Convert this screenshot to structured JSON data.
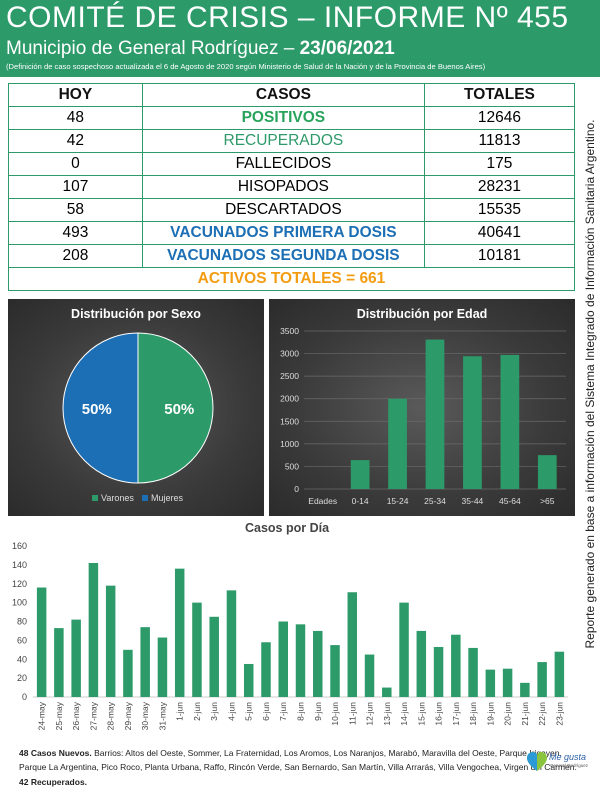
{
  "header": {
    "title": "COMITÉ DE CRISIS – INFORME Nº 455",
    "subtitle_prefix": "Municipio de General Rodríguez – ",
    "subtitle_date": "23/06/2021",
    "note": "(Definición de caso sospechoso actualizada el 6 de Agosto de 2020 según Ministerio de Salud de la Nación y de la Provincia de Buenos Aires)"
  },
  "table": {
    "headers": [
      "HOY",
      "CASOS",
      "TOTALES"
    ],
    "rows": [
      {
        "hoy": "48",
        "label": "POSITIVOS",
        "total": "12646"
      },
      {
        "hoy": "42",
        "label": "RECUPERADOS",
        "total": "11813"
      },
      {
        "hoy": "0",
        "label": "FALLECIDOS",
        "total": "175"
      },
      {
        "hoy": "107",
        "label": "HISOPADOS",
        "total": "28231"
      },
      {
        "hoy": "58",
        "label": "DESCARTADOS",
        "total": "15535"
      },
      {
        "hoy": "493",
        "label": "VACUNADOS PRIMERA DOSIS",
        "total": "40641"
      },
      {
        "hoy": "208",
        "label": "VACUNADOS SEGUNDA DOSIS",
        "total": "10181"
      }
    ],
    "activos": "ACTIVOS TOTALES = 661"
  },
  "side_text": "Reporte generado en base a información del Sistema Integrado de Información Sanitaria Argentino.",
  "chart_data": [
    {
      "type": "pie",
      "title": "Distribución por Sexo",
      "categories": [
        "Varones",
        "Mujeres"
      ],
      "values": [
        50,
        50
      ],
      "labels": [
        "50%",
        "50%"
      ],
      "colors": [
        "#2d9a6a",
        "#1c6fb5"
      ],
      "legend": "bottom"
    },
    {
      "type": "bar",
      "title": "Distribución por Edad",
      "xlabel": "Edades",
      "categories": [
        "0-14",
        "15-24",
        "25-34",
        "35-44",
        "45-64",
        ">65"
      ],
      "values": [
        640,
        2000,
        3310,
        2940,
        2970,
        750
      ],
      "ylim": [
        0,
        3500
      ],
      "yticks": [
        0,
        500,
        1000,
        1500,
        2000,
        2500,
        3000,
        3500
      ],
      "color": "#2d9a6a",
      "grid": true
    },
    {
      "type": "bar",
      "title": "Casos por Día",
      "categories": [
        "24-may",
        "25-may",
        "26-may",
        "27-may",
        "28-may",
        "29-may",
        "30-may",
        "31-may",
        "1-jun",
        "2-jun",
        "3-jun",
        "4-jun",
        "5-jun",
        "6-jun",
        "7-jun",
        "8-jun",
        "9-jun",
        "10-jun",
        "11-jun",
        "12-jun",
        "13-jun",
        "14-jun",
        "15-jun",
        "16-jun",
        "17-jun",
        "18-jun",
        "19-jun",
        "20-jun",
        "21-jun",
        "22-jun",
        "23-jun"
      ],
      "values": [
        116,
        73,
        82,
        142,
        118,
        50,
        74,
        63,
        136,
        100,
        85,
        113,
        35,
        58,
        80,
        77,
        70,
        55,
        111,
        45,
        10,
        100,
        70,
        53,
        66,
        52,
        29,
        30,
        15,
        37,
        48
      ],
      "ylim": [
        0,
        160
      ],
      "yticks": [
        0,
        20,
        40,
        60,
        80,
        100,
        120,
        140,
        160
      ],
      "color": "#2d9a6a",
      "grid": false
    }
  ],
  "footer": {
    "nuevos_bold": "48 Casos Nuevos.",
    "nuevos_text": " Barrios: Altos del Oeste, Sommer, La Fraternidad, Los Aromos, Los Naranjos, Marabó, Maravilla del Oeste, Parque Irigoyen,",
    "line2": "Parque La Argentina, Pico Roco, Planta Urbana, Raffo, Rincón Verde, San Bernardo, San Martín, Villa Arrarás, Villa Vengochea, Virgen del Carmen.",
    "recuperados": "42 Recuperados."
  },
  "logo": {
    "line1": "Me gusta",
    "line2": "General Rodríguez"
  }
}
